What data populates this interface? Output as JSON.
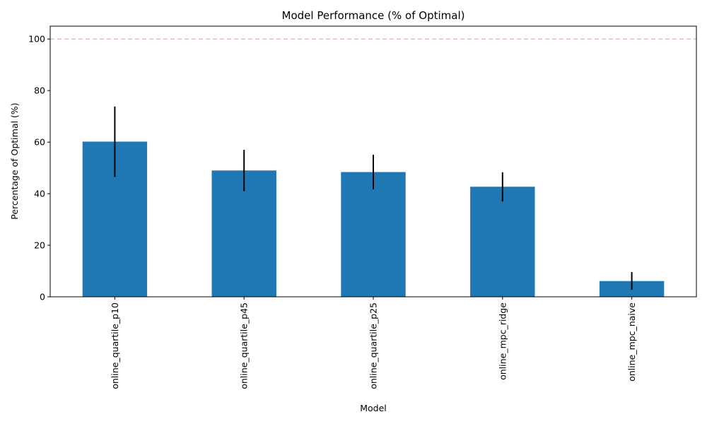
{
  "chart_data": {
    "type": "bar",
    "title": "Model Performance (% of Optimal)",
    "xlabel": "Model",
    "ylabel": "Percentage of Optimal (%)",
    "categories": [
      "online_quartile_p10",
      "online_quartile_p45",
      "online_quartile_p25",
      "online_mpc_ridge",
      "online_mpc_naive"
    ],
    "values": [
      60.2,
      49.0,
      48.4,
      42.7,
      6.1
    ],
    "error_low": [
      46.5,
      41.0,
      41.7,
      37.0,
      2.7
    ],
    "error_high": [
      73.8,
      57.0,
      55.1,
      48.3,
      9.6
    ],
    "ylim": [
      0,
      105
    ],
    "yticks": [
      0,
      20,
      40,
      60,
      80,
      100
    ],
    "reference_line": {
      "value": 100,
      "style": "dashed",
      "color": "#ffb3b3"
    },
    "bar_color": "#1f77b4",
    "error_color": "#000000",
    "grid": false,
    "x_tick_rotation": "vertical"
  }
}
